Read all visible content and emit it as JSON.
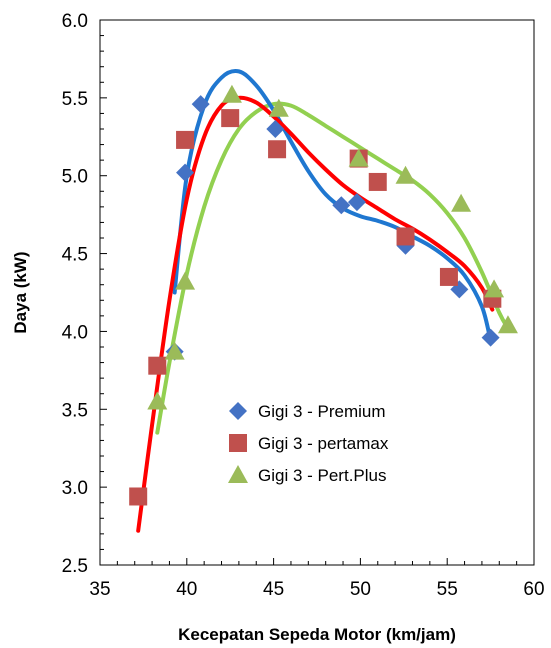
{
  "chart_data": {
    "type": "scatter",
    "xlabel": "Kecepatan Sepeda Motor (km/jam)",
    "ylabel": "Daya  (kW)",
    "xlim": [
      35,
      60
    ],
    "ylim": [
      2.5,
      6.0
    ],
    "x_ticks": [
      "35",
      "40",
      "45",
      "50",
      "55",
      "60"
    ],
    "y_ticks": [
      "2.5",
      "3.0",
      "3.5",
      "4.0",
      "4.5",
      "5.0",
      "5.5",
      "6.0"
    ],
    "x_tick_values": [
      35,
      40,
      45,
      50,
      55,
      60
    ],
    "y_tick_values": [
      2.5,
      3.0,
      3.5,
      4.0,
      4.5,
      5.0,
      5.5,
      6.0
    ],
    "grid": false,
    "legend_position": "bottom-center",
    "series": [
      {
        "name": "Gigi 3 - Premium",
        "marker": "diamond",
        "color": "#4472C4",
        "line_color": "#1F77D0",
        "points": [
          [
            39.3,
            3.87
          ],
          [
            39.9,
            5.02
          ],
          [
            40.8,
            5.46
          ],
          [
            45.1,
            5.3
          ],
          [
            48.9,
            4.81
          ],
          [
            49.8,
            4.83
          ],
          [
            52.6,
            4.55
          ],
          [
            55.7,
            4.27
          ],
          [
            57.5,
            3.96
          ]
        ],
        "trend": [
          [
            39.3,
            4.25
          ],
          [
            40.0,
            5.0
          ],
          [
            41.0,
            5.45
          ],
          [
            42.0,
            5.63
          ],
          [
            43.0,
            5.67
          ],
          [
            44.0,
            5.58
          ],
          [
            45.0,
            5.42
          ],
          [
            46.0,
            5.22
          ],
          [
            47.0,
            5.03
          ],
          [
            48.0,
            4.88
          ],
          [
            49.0,
            4.79
          ],
          [
            50.0,
            4.74
          ],
          [
            51.0,
            4.71
          ],
          [
            52.0,
            4.67
          ],
          [
            53.0,
            4.61
          ],
          [
            54.0,
            4.55
          ],
          [
            55.0,
            4.47
          ],
          [
            56.0,
            4.36
          ],
          [
            57.0,
            4.16
          ],
          [
            57.5,
            3.94
          ]
        ]
      },
      {
        "name": "Gigi 3 - pertamax",
        "marker": "square",
        "color": "#C0504D",
        "line_color": "#FF0000",
        "points": [
          [
            37.2,
            2.94
          ],
          [
            38.3,
            3.78
          ],
          [
            39.9,
            5.23
          ],
          [
            42.5,
            5.37
          ],
          [
            45.2,
            5.17
          ],
          [
            49.9,
            5.11
          ],
          [
            51.0,
            4.96
          ],
          [
            52.6,
            4.61
          ],
          [
            55.1,
            4.35
          ],
          [
            57.6,
            4.21
          ]
        ],
        "trend": [
          [
            37.2,
            2.72
          ],
          [
            38.0,
            3.4
          ],
          [
            39.0,
            4.2
          ],
          [
            40.0,
            4.85
          ],
          [
            41.0,
            5.25
          ],
          [
            42.0,
            5.45
          ],
          [
            43.0,
            5.5
          ],
          [
            44.0,
            5.47
          ],
          [
            45.0,
            5.38
          ],
          [
            46.0,
            5.27
          ],
          [
            47.0,
            5.15
          ],
          [
            48.0,
            5.04
          ],
          [
            49.0,
            4.94
          ],
          [
            50.0,
            4.86
          ],
          [
            51.0,
            4.79
          ],
          [
            52.0,
            4.72
          ],
          [
            53.0,
            4.66
          ],
          [
            54.0,
            4.59
          ],
          [
            55.0,
            4.51
          ],
          [
            56.0,
            4.42
          ],
          [
            57.0,
            4.28
          ],
          [
            57.6,
            4.14
          ]
        ]
      },
      {
        "name": "Gigi 3 - Pert.Plus",
        "marker": "triangle",
        "color": "#9BBB59",
        "line_color": "#92D050",
        "points": [
          [
            38.3,
            3.55
          ],
          [
            39.3,
            3.87
          ],
          [
            39.9,
            4.32
          ],
          [
            42.6,
            5.52
          ],
          [
            45.3,
            5.43
          ],
          [
            49.9,
            5.11
          ],
          [
            52.6,
            5.0
          ],
          [
            55.8,
            4.82
          ],
          [
            57.7,
            4.27
          ],
          [
            58.5,
            4.04
          ]
        ],
        "trend": [
          [
            38.3,
            3.35
          ],
          [
            39.0,
            3.8
          ],
          [
            40.0,
            4.37
          ],
          [
            41.0,
            4.8
          ],
          [
            42.0,
            5.1
          ],
          [
            43.0,
            5.3
          ],
          [
            44.0,
            5.41
          ],
          [
            45.0,
            5.46
          ],
          [
            46.0,
            5.45
          ],
          [
            47.0,
            5.39
          ],
          [
            48.0,
            5.32
          ],
          [
            49.0,
            5.25
          ],
          [
            50.0,
            5.18
          ],
          [
            51.0,
            5.11
          ],
          [
            52.0,
            5.04
          ],
          [
            53.0,
            4.97
          ],
          [
            54.0,
            4.88
          ],
          [
            55.0,
            4.76
          ],
          [
            56.0,
            4.6
          ],
          [
            57.0,
            4.38
          ],
          [
            58.0,
            4.12
          ],
          [
            58.5,
            4.02
          ]
        ]
      }
    ]
  }
}
